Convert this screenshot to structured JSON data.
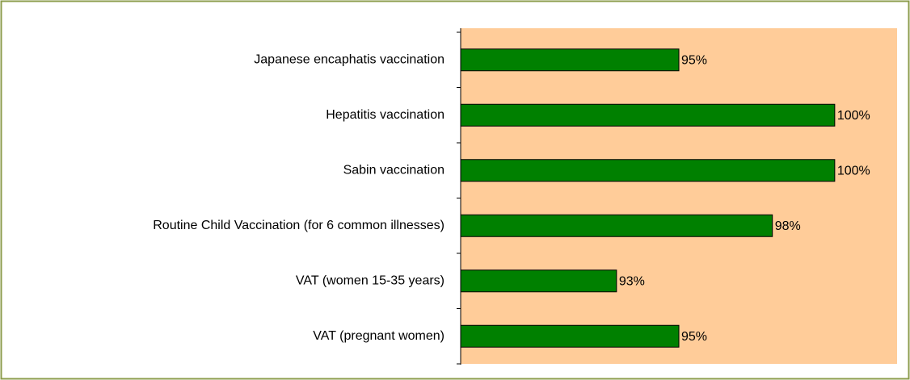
{
  "chart_data": {
    "type": "bar",
    "orientation": "horizontal",
    "categories": [
      "Japanese encaphatis vaccination",
      "Hepatitis vaccination",
      "Sabin vaccination",
      "Routine Child Vaccination (for 6 common illnesses)",
      "VAT (women 15-35 years)",
      "VAT (pregnant women)"
    ],
    "values": [
      95,
      100,
      100,
      98,
      93,
      95
    ],
    "value_labels": [
      "95%",
      "100%",
      "100%",
      "98%",
      "93%",
      "95%"
    ],
    "color": "#008000",
    "background": "#ffcc99",
    "xlim": [
      88,
      102
    ]
  }
}
